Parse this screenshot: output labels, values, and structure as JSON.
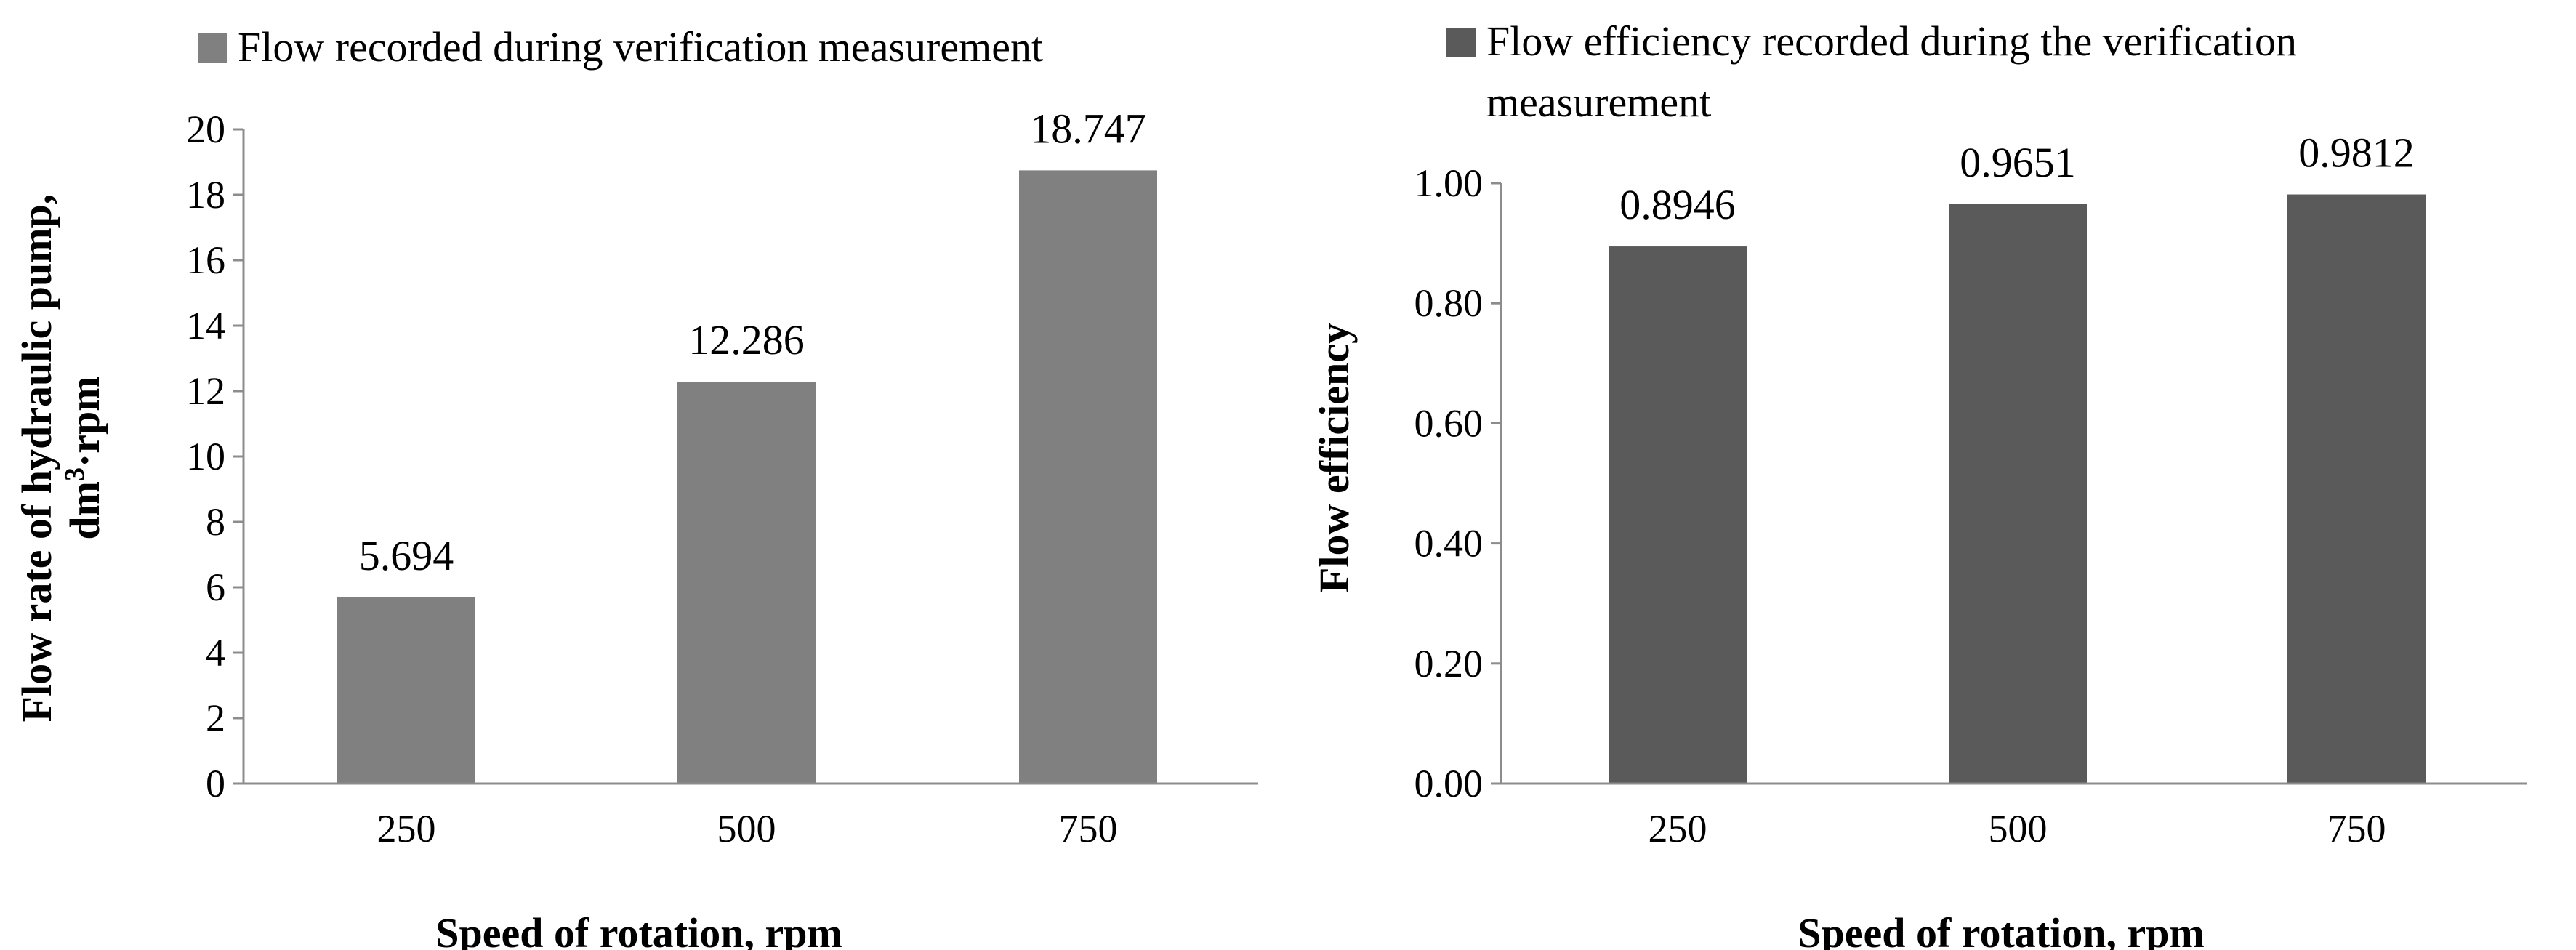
{
  "chart_data": [
    {
      "type": "bar",
      "legend": "Flow recorded during verification measurement",
      "categories": [
        "250",
        "500",
        "750"
      ],
      "values": [
        5.694,
        12.286,
        18.747
      ],
      "value_labels": [
        "5.694",
        "12.286",
        "18.747"
      ],
      "xlabel": "Speed of rotation, rpm",
      "ylabel_line1": "Flow rate of hydraulic pump,",
      "ylabel_line2_base": "dm",
      "ylabel_line2_sup": "3",
      "ylabel_line2_rest": "·rpm",
      "ylim": [
        0,
        20
      ],
      "yticks": [
        0,
        2,
        4,
        6,
        8,
        10,
        12,
        14,
        16,
        18,
        20
      ],
      "ytick_labels": [
        "0",
        "2",
        "4",
        "6",
        "8",
        "10",
        "12",
        "14",
        "16",
        "18",
        "20"
      ],
      "bar_color": "#808080",
      "legend_position": "top",
      "grid": false
    },
    {
      "type": "bar",
      "legend_line1": "Flow efficiency recorded during the verification",
      "legend_line2": "measurement",
      "categories": [
        "250",
        "500",
        "750"
      ],
      "values": [
        0.8946,
        0.9651,
        0.9812
      ],
      "value_labels": [
        "0.8946",
        "0.9651",
        "0.9812"
      ],
      "xlabel": "Speed of rotation, rpm",
      "ylabel": "Flow efficiency",
      "ylim": [
        0,
        1
      ],
      "yticks": [
        0,
        0.2,
        0.4,
        0.6,
        0.8,
        1.0
      ],
      "ytick_labels": [
        "0.00",
        "0.20",
        "0.40",
        "0.60",
        "0.80",
        "1.00"
      ],
      "bar_color": "#5a5a5a",
      "legend_position": "top",
      "grid": false
    }
  ]
}
